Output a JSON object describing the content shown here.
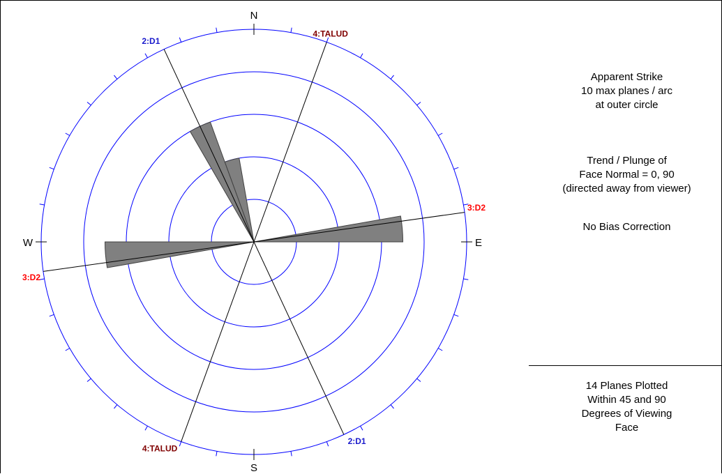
{
  "chart_data": {
    "type": "rose",
    "cardinals": {
      "north": "N",
      "east": "E",
      "south": "S",
      "west": "W"
    },
    "sets": [
      {
        "label": "2:D1",
        "strike": 335,
        "color": "#1a1acc"
      },
      {
        "label": "4:TALUD",
        "strike": 20,
        "color": "#800000"
      },
      {
        "label": "3:D2",
        "strike": 82,
        "color": "#ff0000"
      }
    ],
    "rings": 5,
    "max_planes_per_arc": 10,
    "bin_width_deg": 10,
    "petals": [
      {
        "strike": 335,
        "count": 6
      },
      {
        "strike": 345,
        "count": 4
      },
      {
        "strike": 85,
        "count": 7
      },
      {
        "strike": 265,
        "count": 7
      }
    ],
    "colors": {
      "rings": "#0000ff",
      "ticks": "#0000ff",
      "lines": "#000000",
      "petals": "#808080",
      "petal_edge": "#404040"
    }
  },
  "info": {
    "apparent": [
      "Apparent Strike",
      "10 max planes / arc",
      "at outer circle"
    ],
    "trend": [
      "Trend / Plunge of",
      "Face Normal =   0, 90",
      "(directed away from viewer)"
    ],
    "bias": "No Bias Correction",
    "summary": [
      "14 Planes Plotted",
      "Within 45 and 90",
      "Degrees of Viewing",
      "Face"
    ]
  }
}
